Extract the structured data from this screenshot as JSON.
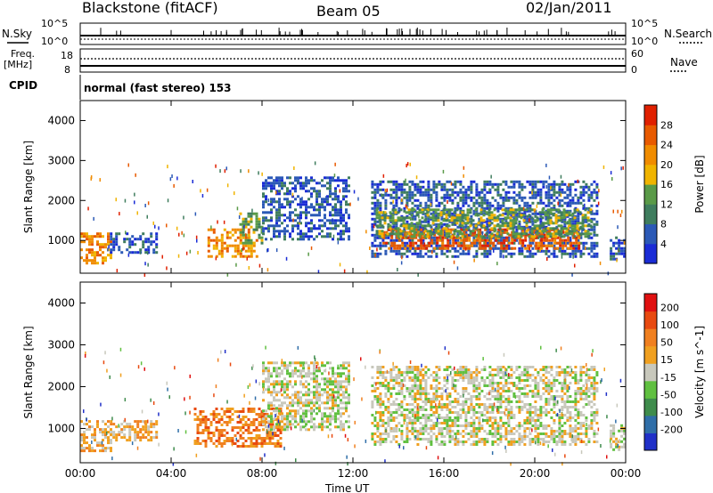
{
  "header": {
    "station": "Blackstone (fitACF)",
    "beam": "Beam 05",
    "date": "02/Jan/2011"
  },
  "top_panels": {
    "nsky_label": "N.Sky",
    "nsky_ticks": [
      "10^5",
      "10^0"
    ],
    "nsearch_label": "N.Search",
    "nsearch_ticks": [
      "10^5",
      "10^0"
    ],
    "freq_label": "Freq.",
    "freq_unit": "[MHz]",
    "freq_ticks": [
      "18",
      "8"
    ],
    "nave_label": "Nave",
    "nave_ticks": [
      "60",
      "0"
    ],
    "cpid_label": "CPID",
    "cpid_value": "normal (fast stereo) 153"
  },
  "colors": {
    "power": [
      "#1a2cd6",
      "#2b59b6",
      "#3f7d5e",
      "#5a9a48",
      "#f0b400",
      "#f08c00",
      "#e85a00",
      "#e02000"
    ],
    "velocity": [
      "#2030c8",
      "#2f6ea8",
      "#3f8c4c",
      "#60c040",
      "#c8c8bc",
      "#f0a020",
      "#f08020",
      "#e84a10",
      "#e01010"
    ]
  },
  "chart_data": [
    {
      "type": "heatmap",
      "title": "",
      "xlabel": "",
      "ylabel": "Slant Range [km]",
      "xlim": [
        0,
        24
      ],
      "ylim": [
        180,
        4500
      ],
      "x_tick_labels": [
        "00:00",
        "04:00",
        "08:00",
        "12:00",
        "16:00",
        "20:00",
        "00:00"
      ],
      "y_ticks": [
        1000,
        2000,
        3000,
        4000
      ],
      "colorbar": {
        "label": "Power [dB]",
        "ticks": [
          4,
          8,
          12,
          16,
          20,
          24,
          28
        ],
        "range": [
          0,
          32
        ]
      },
      "echo_regions": [
        {
          "t0": 0.0,
          "t1": 1.3,
          "r0": 450,
          "r1": 1200,
          "level": 5
        },
        {
          "t0": 1.3,
          "t1": 3.4,
          "r0": 700,
          "r1": 1200,
          "level": 1
        },
        {
          "t0": 5.6,
          "t1": 7.8,
          "r0": 600,
          "r1": 1300,
          "level": 5
        },
        {
          "t0": 7.0,
          "t1": 8.0,
          "r0": 900,
          "r1": 1700,
          "level": 3
        },
        {
          "t0": 8.0,
          "t1": 11.8,
          "r0": 1000,
          "r1": 2600,
          "level": 1
        },
        {
          "t0": 12.8,
          "t1": 22.7,
          "r0": 600,
          "r1": 2500,
          "level": 1
        },
        {
          "t0": 13.3,
          "t1": 22.0,
          "r0": 800,
          "r1": 1300,
          "level": 6
        },
        {
          "t0": 13.0,
          "t1": 22.5,
          "r0": 1100,
          "r1": 1800,
          "level": 3
        },
        {
          "t0": 23.3,
          "t1": 24.0,
          "r0": 500,
          "r1": 1100,
          "level": 1
        }
      ]
    },
    {
      "type": "heatmap",
      "title": "",
      "xlabel": "Time UT",
      "ylabel": "Slant Range [km]",
      "xlim": [
        0,
        24
      ],
      "ylim": [
        180,
        4500
      ],
      "x_tick_labels": [
        "00:00",
        "04:00",
        "08:00",
        "12:00",
        "16:00",
        "20:00",
        "00:00"
      ],
      "y_ticks": [
        1000,
        2000,
        3000,
        4000
      ],
      "colorbar": {
        "label": "Velocity [m s^-1]",
        "ticks": [
          200,
          100,
          50,
          15,
          -15,
          -50,
          -100,
          -200
        ],
        "range": [
          -250,
          250
        ]
      },
      "echo_regions": [
        {
          "t0": 0.0,
          "t1": 1.3,
          "r0": 450,
          "r1": 1200,
          "level": 5
        },
        {
          "t0": 1.3,
          "t1": 3.4,
          "r0": 700,
          "r1": 1200,
          "level": 5
        },
        {
          "t0": 5.0,
          "t1": 8.8,
          "r0": 600,
          "r1": 1500,
          "level": 6
        },
        {
          "t0": 8.0,
          "t1": 11.8,
          "r0": 1000,
          "r1": 2600,
          "level": 4
        },
        {
          "t0": 12.8,
          "t1": 22.7,
          "r0": 600,
          "r1": 2500,
          "level": 4
        },
        {
          "t0": 23.3,
          "t1": 24.0,
          "r0": 500,
          "r1": 1100,
          "level": 4
        }
      ]
    }
  ]
}
